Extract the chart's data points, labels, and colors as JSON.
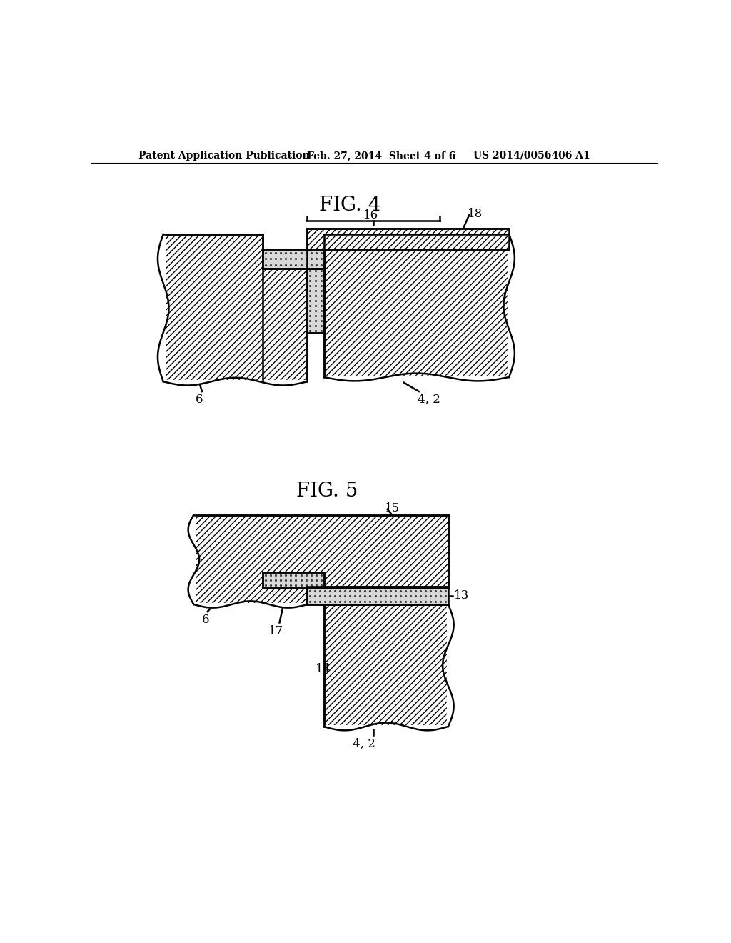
{
  "bg_color": "#ffffff",
  "header_left": "Patent Application Publication",
  "header_center": "Feb. 27, 2014  Sheet 4 of 6",
  "header_right": "US 2014/0056406 A1",
  "fig4_title": "FIG. 4",
  "fig5_title": "FIG. 5",
  "line_width": 1.8,
  "hatch_density": "////",
  "stipple_bg": "#d8d8d8"
}
